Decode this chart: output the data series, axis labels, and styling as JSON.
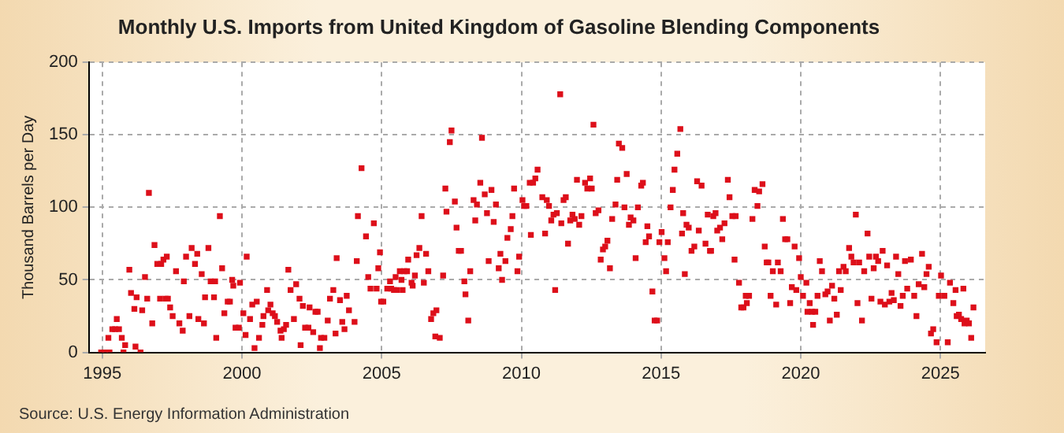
{
  "chart_data": {
    "type": "scatter",
    "title": "Monthly U.S. Imports from United Kingdom of Gasoline Blending Components",
    "ylabel": "Thousand Barrels per Day",
    "annotations": [
      "Source: U.S. Energy Information Administration"
    ],
    "xlim": [
      1994.52,
      2026.6
    ],
    "xticks": [
      1995,
      2000,
      2005,
      2010,
      2015,
      2020,
      2025
    ],
    "ylim": [
      0,
      200
    ],
    "yticks": [
      0,
      50,
      100,
      150,
      200
    ],
    "grid": true,
    "legend": false,
    "marker": "square",
    "series": [
      {
        "color": "#dd0f1a",
        "x": [
          1994.96,
          1995.1,
          1995.26,
          1995.22,
          1995.36,
          1995.46,
          1995.52,
          1995.6,
          1995.7,
          1995.76,
          1995.82,
          1995.97,
          1996.03,
          1996.15,
          1996.23,
          1996.19,
          1996.37,
          1996.43,
          1996.53,
          1996.61,
          1996.67,
          1996.79,
          1996.87,
          1996.97,
          1997.07,
          1997.11,
          1997.19,
          1997.27,
          1997.31,
          1997.35,
          1997.43,
          1997.52,
          1997.64,
          1997.76,
          1997.88,
          1997.92,
          1998.0,
          1998.12,
          1998.2,
          1998.32,
          1998.4,
          1998.44,
          1998.56,
          1998.64,
          1998.68,
          1998.8,
          1998.88,
          1999.0,
          1999.04,
          1999.08,
          1999.21,
          1999.29,
          1999.37,
          1999.49,
          1999.57,
          1999.65,
          1999.69,
          1999.77,
          1999.89,
          1999.93,
          2000.05,
          2000.13,
          2000.17,
          2000.29,
          2000.37,
          2000.45,
          2000.53,
          2000.61,
          2000.73,
          2000.77,
          2000.9,
          2000.94,
          2001.02,
          2001.1,
          2001.18,
          2001.26,
          2001.38,
          2001.42,
          2001.5,
          2001.58,
          2001.66,
          2001.74,
          2001.86,
          2001.94,
          2002.06,
          2002.1,
          2002.18,
          2002.26,
          2002.38,
          2002.42,
          2002.55,
          2002.63,
          2002.71,
          2002.79,
          2002.83,
          2002.95,
          2003.07,
          2003.15,
          2003.27,
          2003.35,
          2003.39,
          2003.51,
          2003.59,
          2003.67,
          2003.75,
          2003.83,
          2004.03,
          2004.11,
          2004.15,
          2004.28,
          2004.44,
          2004.52,
          2004.6,
          2004.72,
          2004.82,
          2004.88,
          2004.94,
          2004.98,
          2005.06,
          2005.2,
          2005.3,
          2005.34,
          2005.44,
          2005.5,
          2005.54,
          2005.65,
          2005.71,
          2005.75,
          2005.81,
          2005.91,
          2005.95,
          2006.07,
          2006.11,
          2006.19,
          2006.25,
          2006.35,
          2006.43,
          2006.51,
          2006.59,
          2006.67,
          2006.77,
          2006.85,
          2006.96,
          2006.92,
          2007.08,
          2007.2,
          2007.28,
          2007.32,
          2007.44,
          2007.5,
          2007.62,
          2007.68,
          2007.76,
          2007.84,
          2007.96,
          2008.0,
          2008.1,
          2008.17,
          2008.29,
          2008.35,
          2008.41,
          2008.53,
          2008.59,
          2008.69,
          2008.77,
          2008.83,
          2008.93,
          2009.01,
          2009.09,
          2009.19,
          2009.25,
          2009.31,
          2009.43,
          2009.5,
          2009.62,
          2009.68,
          2009.74,
          2009.86,
          2009.92,
          2010.04,
          2010.1,
          2010.18,
          2010.34,
          2010.3,
          2010.42,
          2010.5,
          2010.58,
          2010.75,
          2010.85,
          2010.91,
          2010.99,
          2011.07,
          2011.15,
          2011.21,
          2011.27,
          2011.39,
          2011.43,
          2011.51,
          2011.59,
          2011.67,
          2011.75,
          2011.83,
          2011.91,
          2011.99,
          2012.07,
          2012.15,
          2012.28,
          2012.36,
          2012.46,
          2012.52,
          2012.58,
          2012.66,
          2012.76,
          2012.84,
          2012.92,
          2013.0,
          2013.08,
          2013.17,
          2013.25,
          2013.37,
          2013.43,
          2013.49,
          2013.61,
          2013.69,
          2013.77,
          2013.85,
          2013.91,
          2014.01,
          2014.09,
          2014.17,
          2014.29,
          2014.35,
          2014.45,
          2014.51,
          2014.57,
          2014.69,
          2014.77,
          2014.86,
          2014.94,
          2015.02,
          2015.12,
          2015.18,
          2015.24,
          2015.34,
          2015.42,
          2015.48,
          2015.58,
          2015.69,
          2015.75,
          2015.79,
          2015.85,
          2015.91,
          2015.99,
          2016.09,
          2016.19,
          2016.29,
          2016.35,
          2016.45,
          2016.59,
          2016.67,
          2016.75,
          2016.79,
          2016.87,
          2016.95,
          2017.01,
          2017.11,
          2017.19,
          2017.27,
          2017.39,
          2017.45,
          2017.55,
          2017.63,
          2017.67,
          2017.79,
          2017.87,
          2017.95,
          2018.03,
          2018.07,
          2018.15,
          2018.27,
          2018.35,
          2018.45,
          2018.51,
          2018.63,
          2018.71,
          2018.78,
          2018.84,
          2018.92,
          2019.0,
          2019.12,
          2019.18,
          2019.28,
          2019.36,
          2019.44,
          2019.52,
          2019.62,
          2019.68,
          2019.78,
          2019.84,
          2019.94,
          2020.0,
          2020.08,
          2020.2,
          2020.24,
          2020.32,
          2020.4,
          2020.44,
          2020.52,
          2020.6,
          2020.68,
          2020.76,
          2020.88,
          2020.96,
          2021.04,
          2021.12,
          2021.2,
          2021.29,
          2021.37,
          2021.43,
          2021.53,
          2021.61,
          2021.73,
          2021.81,
          2021.89,
          2021.97,
          2022.03,
          2022.09,
          2022.19,
          2022.27,
          2022.39,
          2022.45,
          2022.53,
          2022.61,
          2022.69,
          2022.77,
          2022.85,
          2022.93,
          2023.01,
          2023.09,
          2023.17,
          2023.25,
          2023.33,
          2023.41,
          2023.49,
          2023.57,
          2023.65,
          2023.73,
          2023.81,
          2023.94,
          2024.06,
          2024.14,
          2024.22,
          2024.34,
          2024.42,
          2024.5,
          2024.58,
          2024.66,
          2024.74,
          2024.86,
          2024.94,
          2025.02,
          2025.14,
          2025.26,
          2025.34,
          2025.46,
          2025.54,
          2025.58,
          2025.66,
          2025.74,
          2025.82,
          2025.86,
          2025.94,
          2026.02,
          2026.1,
          2026.18
        ],
        "values": [
          0,
          0,
          0,
          10,
          16,
          16,
          23,
          16,
          10,
          0,
          5,
          57,
          41,
          30,
          38,
          4,
          0,
          29,
          52,
          37,
          110,
          20,
          74,
          61,
          37,
          61,
          64,
          37,
          66,
          37,
          31,
          25,
          56,
          20,
          15,
          49,
          66,
          25,
          72,
          61,
          68,
          23,
          54,
          20,
          38,
          72,
          49,
          38,
          49,
          10,
          94,
          58,
          27,
          35,
          35,
          50,
          46,
          17,
          17,
          48,
          27,
          12,
          66,
          23,
          33,
          3,
          35,
          10,
          19,
          25,
          43,
          29,
          33,
          27,
          25,
          21,
          15,
          10,
          16,
          19,
          57,
          43,
          23,
          47,
          37,
          5,
          32,
          17,
          17,
          31,
          14,
          28,
          28,
          3,
          10,
          10,
          22,
          37,
          43,
          13,
          65,
          36,
          21,
          16,
          39,
          29,
          21,
          63,
          94,
          127,
          80,
          52,
          44,
          89,
          44,
          58,
          69,
          35,
          35,
          44,
          49,
          44,
          43,
          52,
          43,
          56,
          50,
          43,
          56,
          56,
          64,
          48,
          46,
          53,
          67,
          72,
          94,
          48,
          68,
          56,
          23,
          27,
          29,
          11,
          10,
          53,
          113,
          97,
          145,
          153,
          104,
          86,
          70,
          70,
          49,
          40,
          22,
          56,
          105,
          91,
          102,
          117,
          148,
          109,
          96,
          63,
          112,
          90,
          102,
          58,
          68,
          50,
          63,
          79,
          85,
          94,
          113,
          56,
          66,
          105,
          101,
          101,
          81,
          117,
          117,
          120,
          126,
          107,
          82,
          105,
          101,
          91,
          95,
          43,
          96,
          178,
          89,
          105,
          107,
          75,
          91,
          95,
          92,
          119,
          88,
          94,
          117,
          113,
          120,
          113,
          157,
          96,
          98,
          64,
          71,
          73,
          77,
          58,
          92,
          102,
          119,
          144,
          141,
          100,
          123,
          88,
          93,
          91,
          65,
          100,
          115,
          117,
          76,
          87,
          80,
          42,
          22,
          22,
          76,
          83,
          65,
          56,
          76,
          100,
          112,
          126,
          137,
          154,
          82,
          96,
          54,
          88,
          86,
          70,
          73,
          118,
          84,
          115,
          75,
          95,
          70,
          70,
          94,
          96,
          84,
          86,
          78,
          89,
          119,
          107,
          94,
          64,
          94,
          48,
          31,
          31,
          39,
          34,
          39,
          92,
          112,
          101,
          111,
          116,
          73,
          62,
          62,
          39,
          56,
          33,
          62,
          56,
          92,
          78,
          78,
          34,
          45,
          73,
          43,
          65,
          52,
          39,
          48,
          28,
          34,
          28,
          19,
          28,
          39,
          63,
          56,
          40,
          42,
          22,
          46,
          37,
          26,
          56,
          43,
          59,
          56,
          72,
          66,
          62,
          95,
          34,
          62,
          22,
          56,
          82,
          66,
          37,
          58,
          66,
          63,
          35,
          70,
          33,
          60,
          35,
          41,
          36,
          66,
          54,
          32,
          39,
          63,
          44,
          64,
          39,
          25,
          47,
          68,
          45,
          54,
          59,
          13,
          16,
          7,
          39,
          53,
          39,
          7,
          48,
          34,
          43,
          25,
          26,
          23,
          44,
          20,
          22,
          20,
          10,
          31
        ]
      }
    ]
  }
}
